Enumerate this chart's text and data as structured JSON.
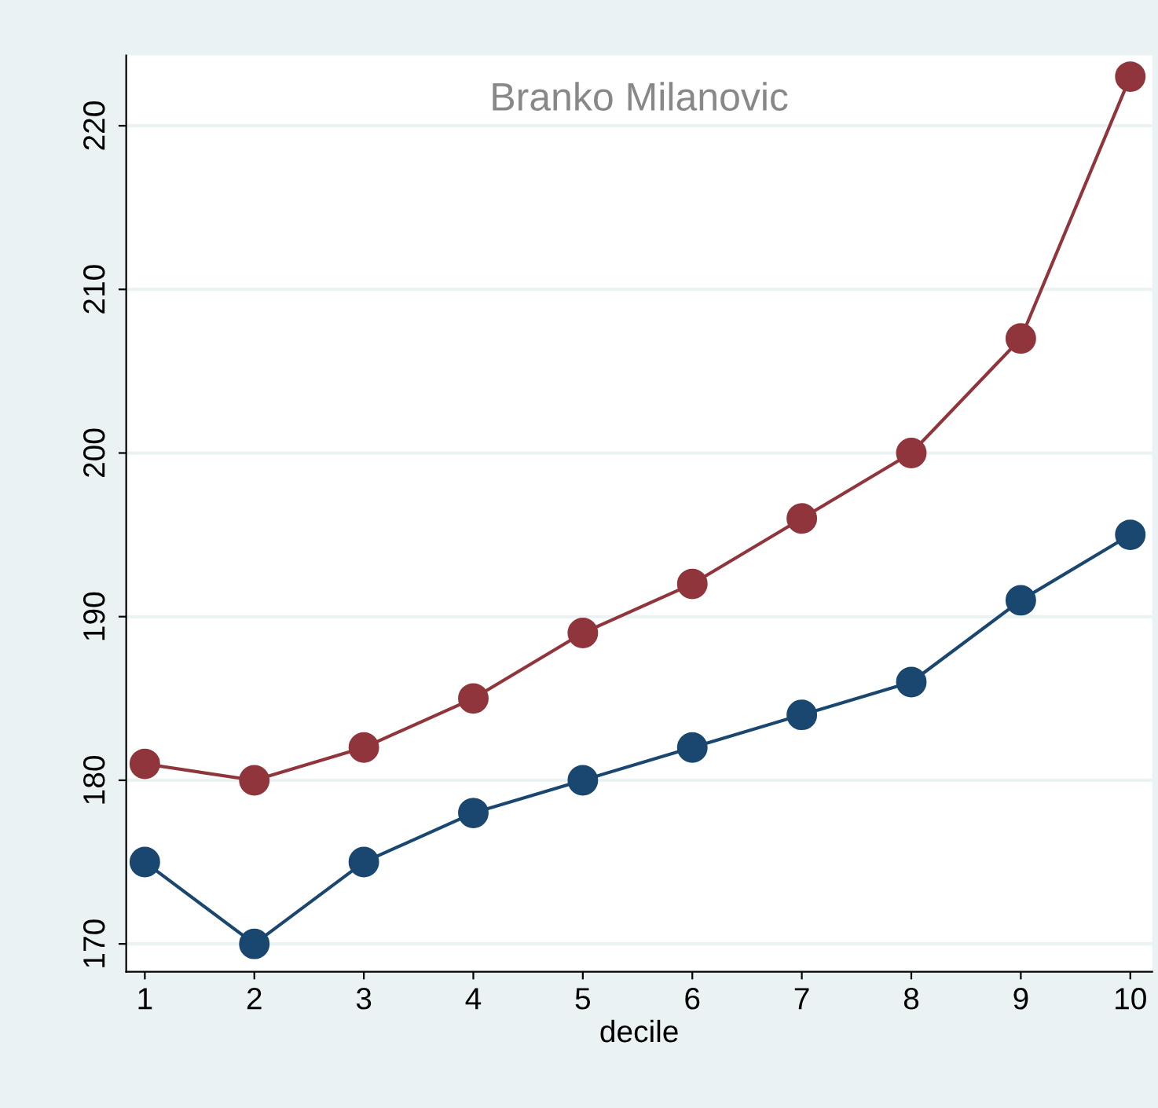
{
  "chart_data": {
    "type": "line",
    "xlabel": "decile",
    "x": [
      1,
      2,
      3,
      4,
      5,
      6,
      7,
      8,
      9,
      10
    ],
    "series": [
      {
        "color": "#90353b",
        "values": [
          181,
          180,
          182,
          185,
          189,
          192,
          196,
          200,
          207,
          223
        ]
      },
      {
        "color": "#1a476f",
        "values": [
          175,
          170,
          175,
          178,
          180,
          182,
          184,
          186,
          191,
          195
        ]
      }
    ],
    "xlim": [
      0.83,
      10.2
    ],
    "xticks": [
      1,
      2,
      3,
      4,
      5,
      6,
      7,
      8,
      9,
      10
    ],
    "ylim": [
      168.3,
      224.3
    ],
    "yticks": [
      170,
      180,
      190,
      200,
      210,
      220
    ],
    "grid": "y",
    "marker": "circle",
    "line_style": "solid",
    "annotations": [
      "Branko Milanovic"
    ]
  }
}
